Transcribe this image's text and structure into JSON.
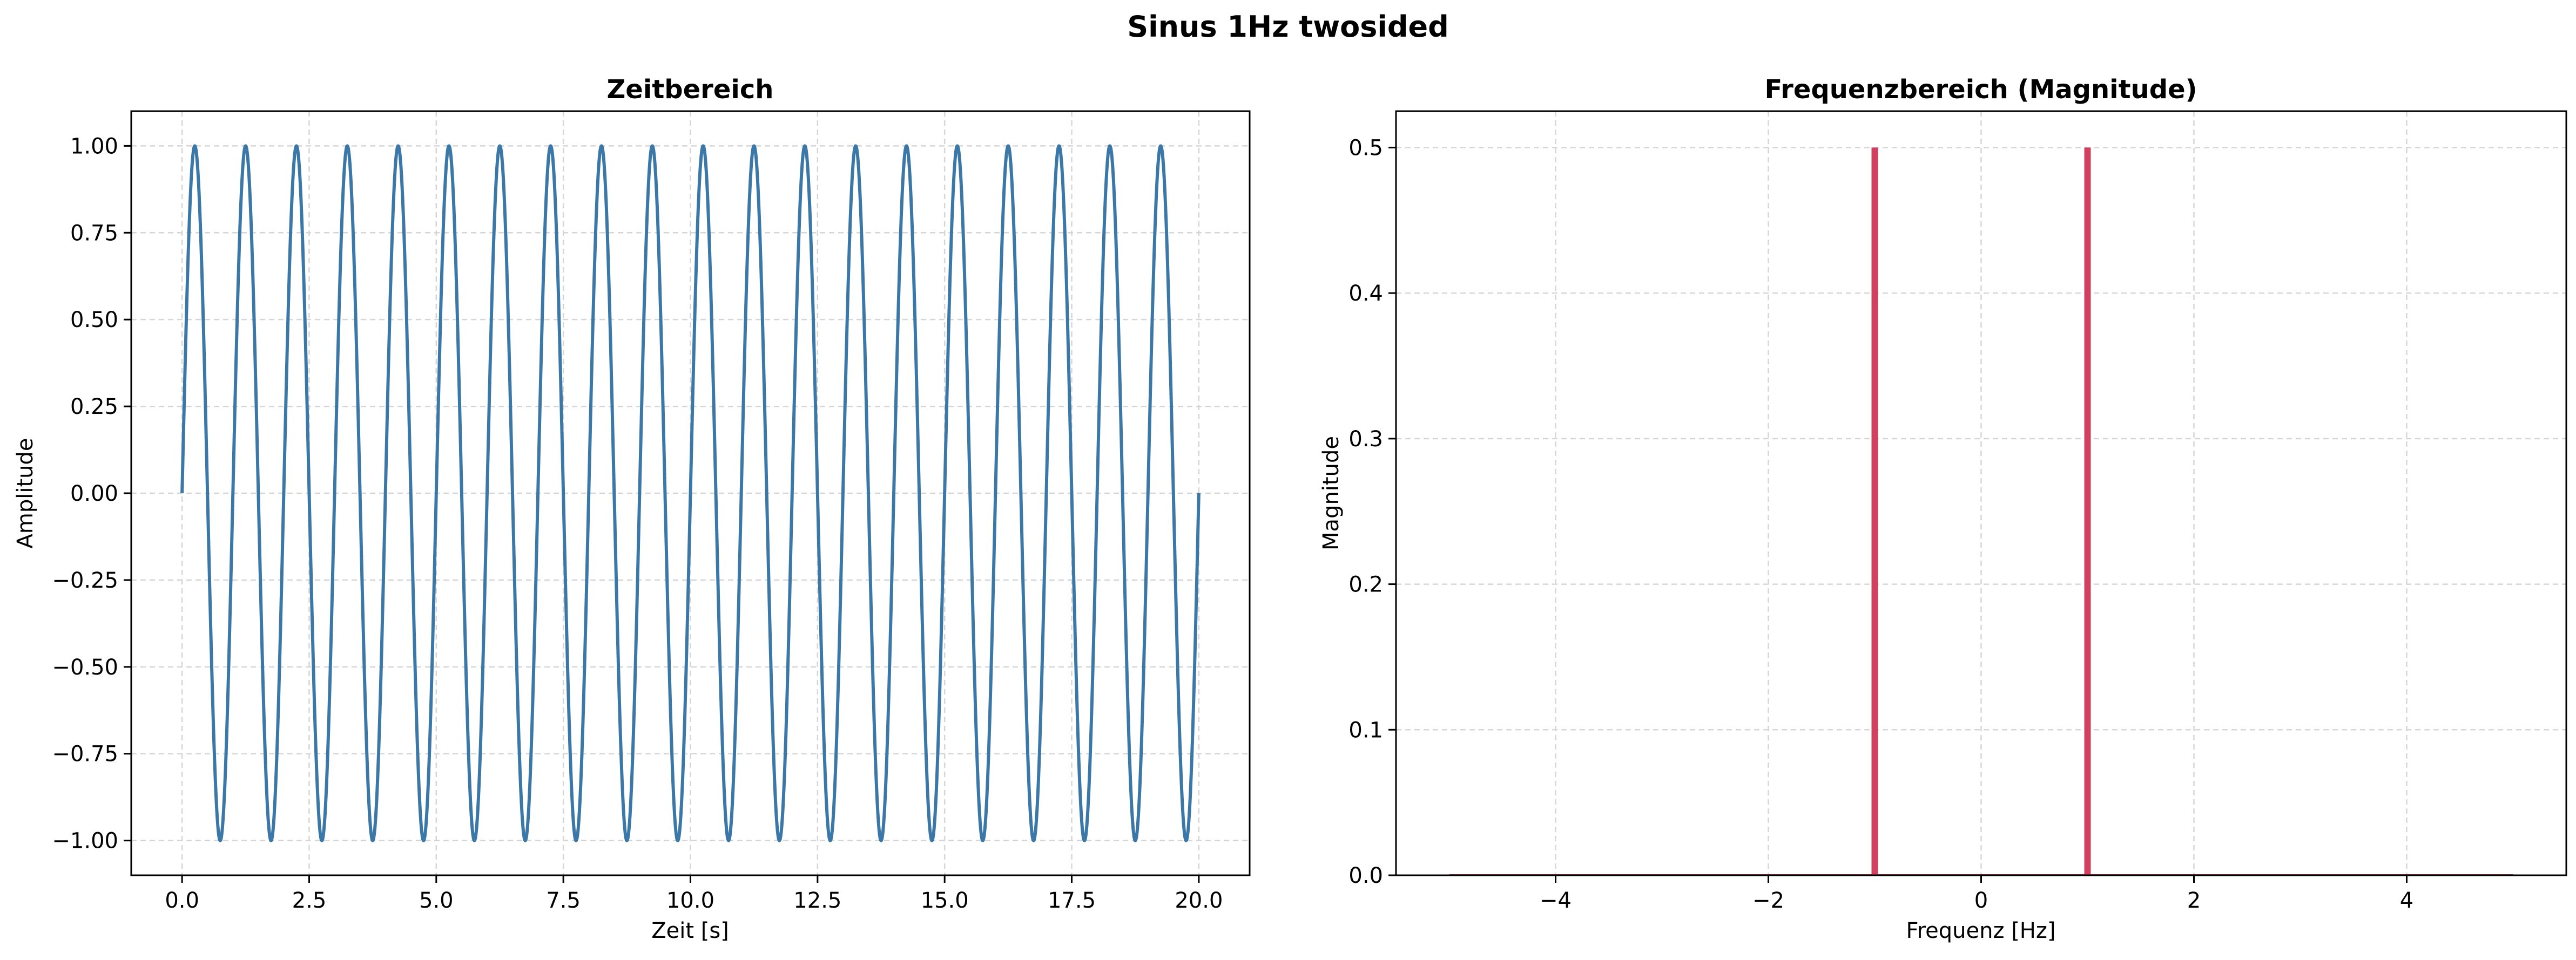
{
  "figure": {
    "suptitle": "Sinus 1Hz twosided"
  },
  "chart_data": [
    {
      "type": "line",
      "title": "Zeitbereich",
      "xlabel": "Zeit [s]",
      "ylabel": "Amplitude",
      "xlim": [
        -1.0,
        21.0
      ],
      "ylim": [
        -1.1,
        1.1
      ],
      "xticks": [
        0.0,
        2.5,
        5.0,
        7.5,
        10.0,
        12.5,
        15.0,
        17.5,
        20.0
      ],
      "xticklabels": [
        "0.0",
        "2.5",
        "5.0",
        "7.5",
        "10.0",
        "12.5",
        "15.0",
        "17.5",
        "20.0"
      ],
      "yticks": [
        -1.0,
        -0.75,
        -0.5,
        -0.25,
        0.0,
        0.25,
        0.5,
        0.75,
        1.0
      ],
      "yticklabels": [
        "−1.00",
        "−0.75",
        "−0.50",
        "−0.25",
        "0.00",
        "0.25",
        "0.50",
        "0.75",
        "1.00"
      ],
      "grid": true,
      "series": [
        {
          "function": "sin(2*pi*1*t)",
          "frequency_hz": 1,
          "amplitude": 1,
          "t_start": 0.0,
          "t_end": 20.0,
          "color": "#3b78a8"
        }
      ]
    },
    {
      "type": "bar",
      "title": "Frequenzbereich (Magnitude)",
      "xlabel": "Frequenz [Hz]",
      "ylabel": "Magnitude",
      "xlim": [
        -5.5,
        5.5
      ],
      "ylim": [
        0.0,
        0.525
      ],
      "xticks": [
        -4,
        -2,
        0,
        2,
        4
      ],
      "xticklabels": [
        "−4",
        "−2",
        "0",
        "2",
        "4"
      ],
      "yticks": [
        0.0,
        0.1,
        0.2,
        0.3,
        0.4,
        0.5
      ],
      "yticklabels": [
        "0.0",
        "0.1",
        "0.2",
        "0.3",
        "0.4",
        "0.5"
      ],
      "grid": true,
      "baseline_range": [
        -5.0,
        5.0
      ],
      "series": [
        {
          "x": [
            -1.0,
            1.0
          ],
          "values": [
            0.5,
            0.5
          ],
          "color": "#d1405e"
        }
      ]
    }
  ]
}
